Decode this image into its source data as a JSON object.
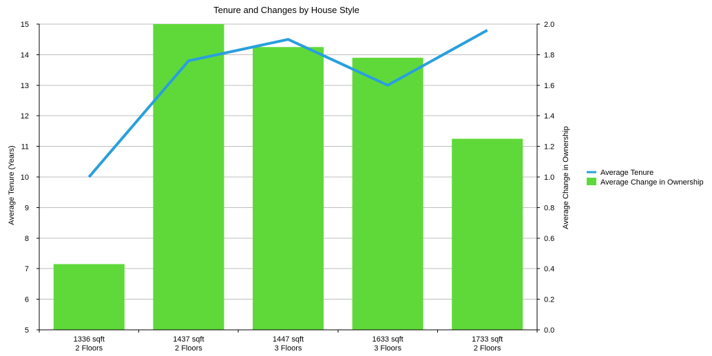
{
  "chart_data": {
    "type": "bar",
    "title": "Tenure and Changes by House Style",
    "categories": [
      [
        "1336 sqft",
        "2 Floors"
      ],
      [
        "1437 sqft",
        "2 Floors"
      ],
      [
        "1447 sqft",
        "3 Floors"
      ],
      [
        "1633 sqft",
        "3 Floors"
      ],
      [
        "1733 sqft",
        "2 Floors"
      ]
    ],
    "y_left": {
      "label": "Average Tenure (Years)",
      "range": [
        5,
        15
      ],
      "ticks": [
        "5",
        "6",
        "7",
        "8",
        "9",
        "10",
        "11",
        "12",
        "13",
        "14",
        "15"
      ]
    },
    "y_right": {
      "label": "Average Change in Ownership",
      "range": [
        0,
        2
      ],
      "ticks": [
        "0.0",
        "0.2",
        "0.4",
        "0.6",
        "0.8",
        "1.0",
        "1.2",
        "1.4",
        "1.6",
        "1.8",
        "2.0"
      ]
    },
    "series": [
      {
        "name": "Average Change in Ownership",
        "type": "bar",
        "axis": "right",
        "color": "#5fd93a",
        "values": [
          0.43,
          2.0,
          1.85,
          1.78,
          1.25
        ]
      },
      {
        "name": "Average Tenure",
        "type": "line",
        "axis": "left",
        "color": "#2a9fdc",
        "values": [
          10.0,
          13.8,
          14.5,
          13.0,
          14.8
        ]
      }
    ],
    "grid": true,
    "legend_position": "right"
  }
}
